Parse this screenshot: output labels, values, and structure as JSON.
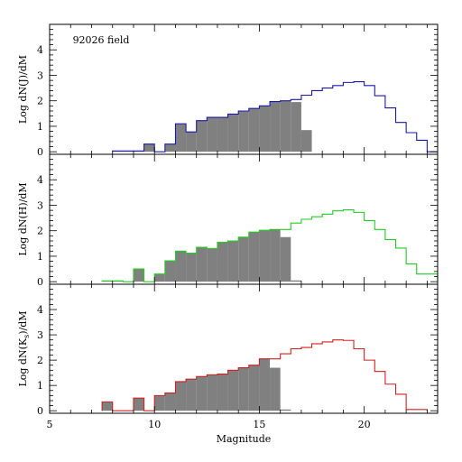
{
  "chart_data": [
    {
      "type": "histogram",
      "annotation": "92026 field",
      "ylabel": "Log dN(J)/dM",
      "xlabel": "",
      "xlim": [
        5,
        23.5
      ],
      "ylim": [
        -0.1,
        5
      ],
      "bin_width": 0.5,
      "outline_color": "#1a1aaa",
      "filled_color": "#808080",
      "outline_series": {
        "name": "",
        "bins": [
          [
            8,
            0.03
          ],
          [
            8.5,
            0.03
          ],
          [
            9,
            0.03
          ],
          [
            9.5,
            0.3
          ],
          [
            10,
            0
          ],
          [
            10.5,
            0.3
          ],
          [
            11,
            1.1
          ],
          [
            11.5,
            0.78
          ],
          [
            12,
            1.22
          ],
          [
            12.5,
            1.35
          ],
          [
            13,
            1.35
          ],
          [
            13.5,
            1.48
          ],
          [
            14,
            1.6
          ],
          [
            14.5,
            1.7
          ],
          [
            15,
            1.8
          ],
          [
            15.5,
            1.97
          ],
          [
            16,
            2.0
          ],
          [
            16.5,
            2.05
          ],
          [
            17,
            2.22
          ],
          [
            17.5,
            2.4
          ],
          [
            18,
            2.5
          ],
          [
            18.5,
            2.6
          ],
          [
            19,
            2.72
          ],
          [
            19.5,
            2.75
          ],
          [
            20,
            2.6
          ],
          [
            20.5,
            2.2
          ],
          [
            21,
            1.72
          ],
          [
            21.5,
            1.15
          ],
          [
            22,
            0.75
          ],
          [
            22.5,
            0.45
          ],
          [
            23,
            0
          ]
        ]
      },
      "filled_series": {
        "name": "",
        "bins": [
          [
            8,
            0.03
          ],
          [
            8.5,
            0.03
          ],
          [
            9,
            0.03
          ],
          [
            9.5,
            0.3
          ],
          [
            10,
            0
          ],
          [
            10.5,
            0.3
          ],
          [
            11,
            1.1
          ],
          [
            11.5,
            0.78
          ],
          [
            12,
            1.22
          ],
          [
            12.5,
            1.35
          ],
          [
            13,
            1.35
          ],
          [
            13.5,
            1.48
          ],
          [
            14,
            1.6
          ],
          [
            14.5,
            1.7
          ],
          [
            15,
            1.8
          ],
          [
            15.5,
            1.97
          ],
          [
            16,
            2.0
          ],
          [
            16.5,
            1.95
          ],
          [
            17,
            0.85
          ]
        ]
      },
      "yticks": [
        0,
        1,
        2,
        3,
        4
      ]
    },
    {
      "type": "histogram",
      "annotation": "",
      "ylabel": "Log dN(H)/dM",
      "xlabel": "",
      "xlim": [
        5,
        23.5
      ],
      "ylim": [
        -0.1,
        5
      ],
      "bin_width": 0.5,
      "outline_color": "#22cc22",
      "filled_color": "#808080",
      "outline_series": {
        "name": "",
        "bins": [
          [
            7.5,
            0.03
          ],
          [
            8,
            0.03
          ],
          [
            8.5,
            0
          ],
          [
            9,
            0.5
          ],
          [
            9.5,
            0
          ],
          [
            10,
            0.3
          ],
          [
            10.5,
            0.82
          ],
          [
            11,
            1.2
          ],
          [
            11.5,
            1.12
          ],
          [
            12,
            1.35
          ],
          [
            12.5,
            1.3
          ],
          [
            13,
            1.55
          ],
          [
            13.5,
            1.6
          ],
          [
            14,
            1.75
          ],
          [
            14.5,
            1.95
          ],
          [
            15,
            2.02
          ],
          [
            15.5,
            2.05
          ],
          [
            16,
            2.05
          ],
          [
            16.5,
            2.3
          ],
          [
            17,
            2.45
          ],
          [
            17.5,
            2.55
          ],
          [
            18,
            2.65
          ],
          [
            18.5,
            2.78
          ],
          [
            19,
            2.82
          ],
          [
            19.5,
            2.72
          ],
          [
            20,
            2.4
          ],
          [
            20.5,
            2.05
          ],
          [
            21,
            1.65
          ],
          [
            21.5,
            1.32
          ],
          [
            22,
            0.7
          ],
          [
            22.5,
            0.3
          ],
          [
            23,
            0.3
          ]
        ]
      },
      "filled_series": {
        "name": "",
        "bins": [
          [
            7.5,
            0.03
          ],
          [
            8,
            0.03
          ],
          [
            8.5,
            0
          ],
          [
            9,
            0.5
          ],
          [
            9.5,
            0
          ],
          [
            10,
            0.3
          ],
          [
            10.5,
            0.82
          ],
          [
            11,
            1.2
          ],
          [
            11.5,
            1.12
          ],
          [
            12,
            1.35
          ],
          [
            12.5,
            1.3
          ],
          [
            13,
            1.55
          ],
          [
            13.5,
            1.6
          ],
          [
            14,
            1.75
          ],
          [
            14.5,
            1.95
          ],
          [
            15,
            2.02
          ],
          [
            15.5,
            2.05
          ],
          [
            16,
            1.75
          ],
          [
            16.5,
            0.05
          ]
        ]
      },
      "yticks": [
        0,
        1,
        2,
        3,
        4
      ]
    },
    {
      "type": "histogram",
      "annotation": "",
      "ylabel_parts": [
        "Log dN(K",
        "s",
        ")/dM"
      ],
      "xlabel": "Magnitude",
      "xlim": [
        5,
        23.5
      ],
      "ylim": [
        -0.1,
        5
      ],
      "bin_width": 0.5,
      "outline_color": "#cc2222",
      "filled_color": "#808080",
      "outline_series": {
        "name": "",
        "bins": [
          [
            7.5,
            0.35
          ],
          [
            8,
            0
          ],
          [
            8.5,
            0
          ],
          [
            9,
            0.5
          ],
          [
            9.5,
            0
          ],
          [
            10,
            0.6
          ],
          [
            10.5,
            0.7
          ],
          [
            11,
            1.15
          ],
          [
            11.5,
            1.25
          ],
          [
            12,
            1.35
          ],
          [
            12.5,
            1.42
          ],
          [
            13,
            1.45
          ],
          [
            13.5,
            1.6
          ],
          [
            14,
            1.7
          ],
          [
            14.5,
            1.8
          ],
          [
            15,
            2.05
          ],
          [
            15.5,
            2.05
          ],
          [
            16,
            2.25
          ],
          [
            16.5,
            2.45
          ],
          [
            17,
            2.5
          ],
          [
            17.5,
            2.65
          ],
          [
            18,
            2.72
          ],
          [
            18.5,
            2.8
          ],
          [
            19,
            2.78
          ],
          [
            19.5,
            2.45
          ],
          [
            20,
            2.0
          ],
          [
            20.5,
            1.55
          ],
          [
            21,
            1.05
          ],
          [
            21.5,
            0.65
          ],
          [
            22,
            0.05
          ],
          [
            22.5,
            0.05
          ]
        ]
      },
      "filled_series": {
        "name": "",
        "bins": [
          [
            7.5,
            0.35
          ],
          [
            8,
            0
          ],
          [
            8.5,
            0
          ],
          [
            9,
            0.5
          ],
          [
            9.5,
            0
          ],
          [
            10,
            0.6
          ],
          [
            10.5,
            0.7
          ],
          [
            11,
            1.15
          ],
          [
            11.5,
            1.25
          ],
          [
            12,
            1.35
          ],
          [
            12.5,
            1.42
          ],
          [
            13,
            1.45
          ],
          [
            13.5,
            1.6
          ],
          [
            14,
            1.7
          ],
          [
            14.5,
            1.8
          ],
          [
            15,
            2.05
          ],
          [
            15.5,
            1.7
          ],
          [
            16,
            0.05
          ]
        ]
      },
      "yticks": [
        0,
        1,
        2,
        3,
        4
      ],
      "xticks": [
        5,
        10,
        15,
        20
      ]
    }
  ]
}
